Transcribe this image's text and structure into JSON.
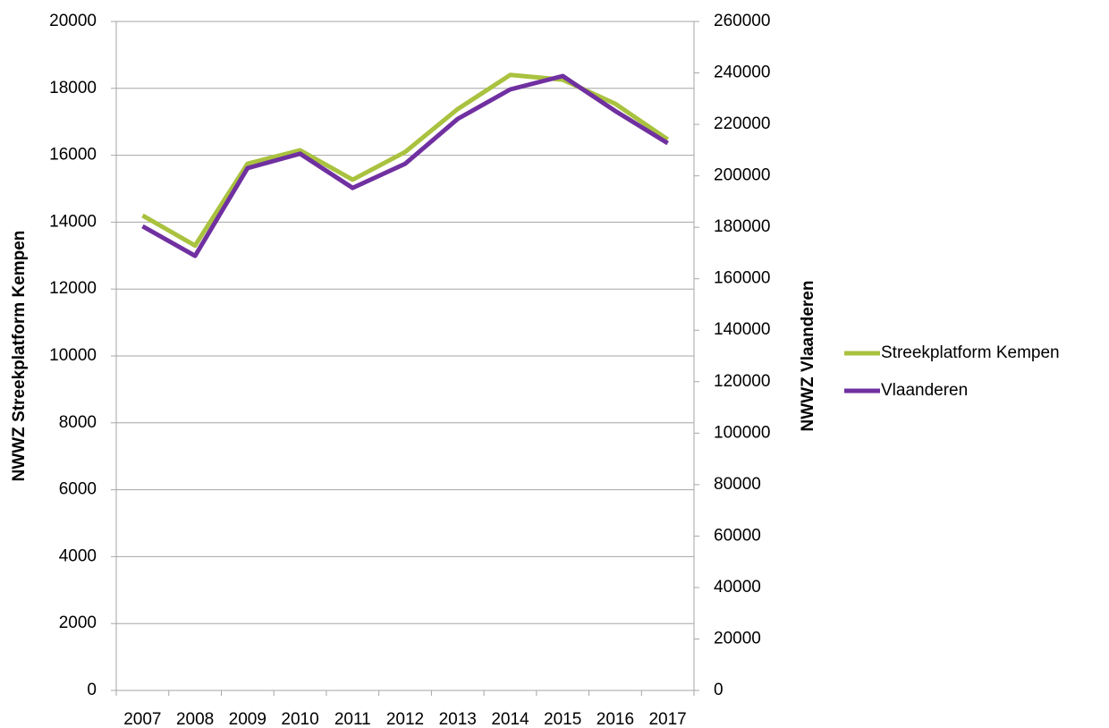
{
  "chart_data": {
    "type": "line",
    "categories": [
      "2007",
      "2008",
      "2009",
      "2010",
      "2011",
      "2012",
      "2013",
      "2014",
      "2015",
      "2016",
      "2017"
    ],
    "series": [
      {
        "name": "Streekplatform Kempen",
        "color": "#a9c23f",
        "axis": "y",
        "values": [
          14200,
          13300,
          15750,
          16150,
          15270,
          16100,
          17380,
          18400,
          18260,
          17540,
          16470
        ]
      },
      {
        "name": "Vlaanderen",
        "color": "#7030a0",
        "axis": "y2",
        "values": [
          180400,
          168900,
          203000,
          208600,
          195300,
          204700,
          222100,
          233600,
          238800,
          225200,
          212700
        ]
      }
    ],
    "y_label": "NWWZ Streekplatform Kempen",
    "y2_label": "NWWZ Vlaanderen",
    "ylim": [
      0,
      20000
    ],
    "yticks": [
      0,
      2000,
      4000,
      6000,
      8000,
      10000,
      12000,
      14000,
      16000,
      18000,
      20000
    ],
    "y2lim": [
      0,
      260000
    ],
    "y2ticks": [
      0,
      20000,
      40000,
      60000,
      80000,
      100000,
      120000,
      140000,
      160000,
      180000,
      200000,
      220000,
      240000,
      260000
    ],
    "grid": true,
    "legend": "right"
  }
}
